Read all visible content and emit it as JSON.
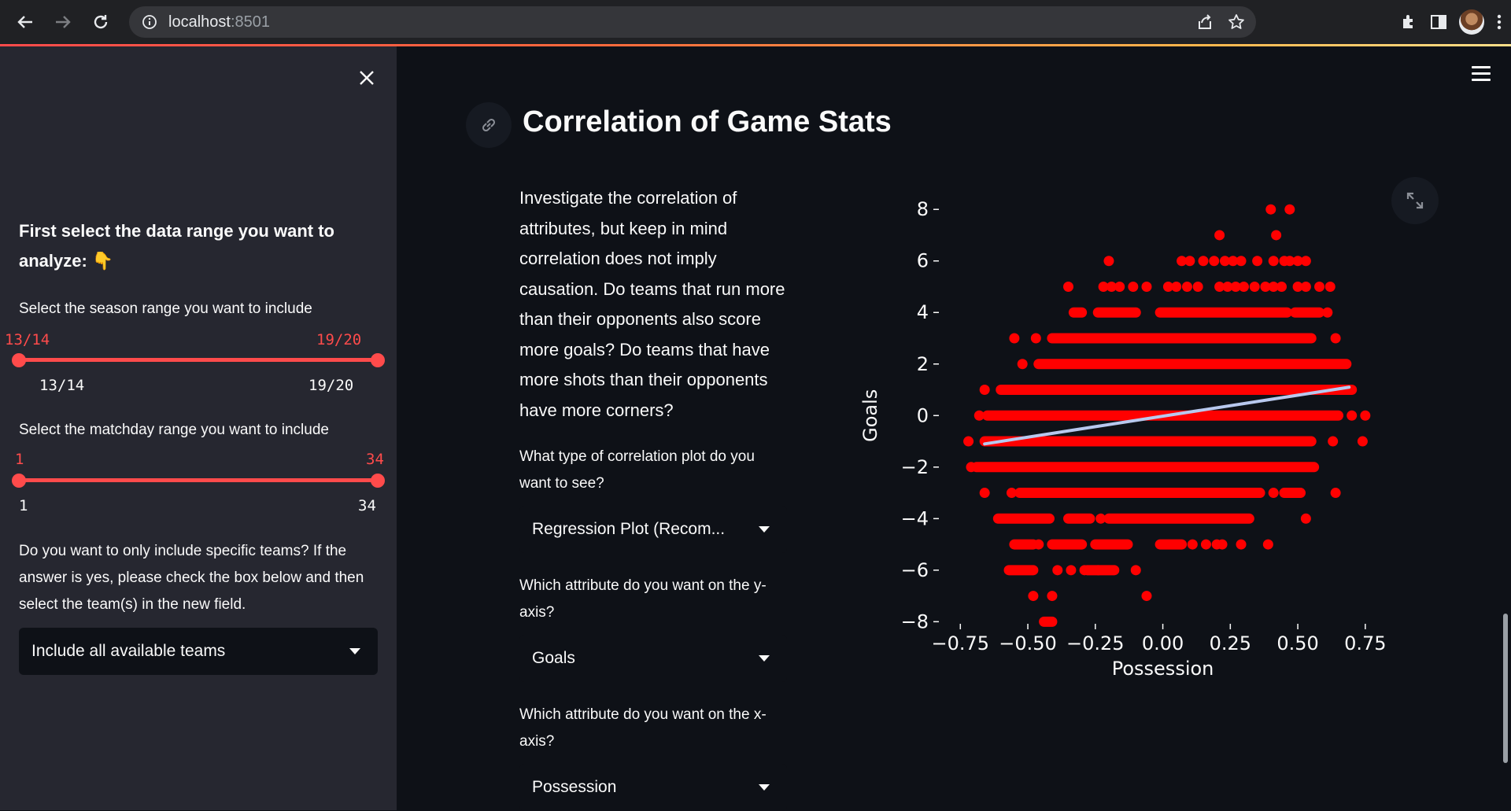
{
  "browser": {
    "url_host": "localhost",
    "url_port": ":8501"
  },
  "sidebar": {
    "heading": "First select the data range you want to analyze: 👇",
    "season_label": "Select the season range you want to include",
    "season_value_low": "13/14",
    "season_value_high": "19/20",
    "season_min": "13/14",
    "season_max": "19/20",
    "matchday_label": "Select the matchday range you want to include",
    "matchday_value_low": "1",
    "matchday_value_high": "34",
    "matchday_min": "1",
    "matchday_max": "34",
    "teams_question": "Do you want to only include specific teams? If the answer is yes, please check the box below and then select the team(s) in the new field.",
    "teams_select_value": "Include all available teams"
  },
  "main": {
    "title": "Correlation of Game Stats",
    "intro": "Investigate the correlation of attributes, but keep in mind correlation does not imply causation. Do teams that run more than their opponents also score more goals? Do teams that have more shots than their opponents have more corners?",
    "plot_type_label": "What type of correlation plot do you want to see?",
    "plot_type_value": "Regression Plot (Recom...",
    "y_attr_label": "Which attribute do you want on the y-axis?",
    "y_attr_value": "Goals",
    "x_attr_label": "Which attribute do you want on the x-axis?",
    "x_attr_value": "Possession"
  },
  "colors": {
    "accent": "#ff4b4b",
    "point": "#ff0000",
    "regression_line": "#b8c8ee",
    "background": "#0e1117",
    "sidebar": "#262730"
  },
  "chart_data": {
    "type": "scatter",
    "xlabel": "Possession",
    "ylabel": "Goals",
    "xlim": [
      -0.78,
      0.8
    ],
    "ylim": [
      -8.6,
      8.8
    ],
    "x_ticks": [
      -0.75,
      -0.5,
      -0.25,
      0.0,
      0.25,
      0.5,
      0.75
    ],
    "x_tick_labels": [
      "−0.75",
      "−0.50",
      "−0.25",
      "0.00",
      "0.25",
      "0.50",
      "0.75"
    ],
    "y_ticks": [
      8,
      6,
      4,
      2,
      0,
      -2,
      -4,
      -6,
      -8
    ],
    "y_tick_labels": [
      "8",
      "6",
      "4",
      "2",
      "0",
      "−2",
      "−4",
      "−6",
      "−8"
    ],
    "grid": false,
    "bands": [
      {
        "y": 8,
        "points": [
          0.4,
          0.47
        ]
      },
      {
        "y": 7,
        "points": [
          0.21,
          0.42
        ]
      },
      {
        "y": 6,
        "points": [
          -0.2,
          0.07,
          0.1,
          0.15,
          0.19,
          0.23,
          0.26,
          0.29,
          0.35,
          0.41,
          0.45,
          0.47,
          0.5,
          0.53
        ]
      },
      {
        "y": 5,
        "points": [
          -0.35,
          -0.22,
          -0.19,
          -0.16,
          -0.11,
          -0.06,
          0.02,
          0.05,
          0.09,
          0.13,
          0.21,
          0.24,
          0.27,
          0.3,
          0.34,
          0.38,
          0.41,
          0.44,
          0.5,
          0.53,
          0.58,
          0.62
        ]
      },
      {
        "y": 4,
        "segments": [
          [
            -0.33,
            -0.3
          ],
          [
            -0.24,
            -0.1
          ],
          [
            -0.01,
            0.46
          ],
          [
            0.49,
            0.58
          ]
        ],
        "points": [
          0.61
        ]
      },
      {
        "y": 3,
        "segments": [
          [
            -0.41,
            0.55
          ]
        ],
        "points": [
          -0.55,
          -0.47,
          0.64
        ]
      },
      {
        "y": 2,
        "segments": [
          [
            -0.46,
            0.68
          ]
        ],
        "points": [
          -0.52
        ]
      },
      {
        "y": 1,
        "segments": [
          [
            -0.6,
            0.7
          ]
        ],
        "points": [
          -0.66,
          0.64
        ]
      },
      {
        "y": 0,
        "segments": [
          [
            -0.65,
            0.65
          ]
        ],
        "points": [
          -0.68,
          0.7,
          0.75
        ]
      },
      {
        "y": -1,
        "segments": [
          [
            -0.66,
            0.55
          ]
        ],
        "points": [
          -0.72,
          0.63,
          0.74
        ]
      },
      {
        "y": -2,
        "segments": [
          [
            -0.69,
            0.56
          ]
        ],
        "points": [
          -0.71
        ]
      },
      {
        "y": -3,
        "segments": [
          [
            -0.53,
            0.36
          ],
          [
            0.45,
            0.51
          ]
        ],
        "points": [
          -0.66,
          -0.56,
          0.41,
          0.64
        ]
      },
      {
        "y": -4,
        "segments": [
          [
            -0.61,
            -0.42
          ],
          [
            -0.35,
            -0.27
          ],
          [
            -0.2,
            0.32
          ]
        ],
        "points": [
          -0.23,
          0.53
        ]
      },
      {
        "y": -5,
        "segments": [
          [
            -0.55,
            -0.48
          ],
          [
            -0.41,
            -0.3
          ],
          [
            -0.25,
            -0.13
          ],
          [
            -0.01,
            0.07
          ]
        ],
        "points": [
          -0.46,
          0.11,
          0.16,
          0.2,
          0.22,
          0.29,
          0.39
        ]
      },
      {
        "y": -6,
        "segments": [
          [
            -0.57,
            -0.48
          ],
          [
            -0.28,
            -0.18
          ]
        ],
        "points": [
          -0.39,
          -0.34,
          -0.29,
          -0.24,
          -0.1
        ]
      },
      {
        "y": -7,
        "points": [
          -0.48,
          -0.41,
          -0.06
        ]
      },
      {
        "y": -8,
        "segments": [
          [
            -0.44,
            -0.41
          ]
        ]
      }
    ],
    "regression": {
      "x": [
        -0.66,
        0.69
      ],
      "y": [
        -1.1,
        1.1
      ]
    }
  }
}
